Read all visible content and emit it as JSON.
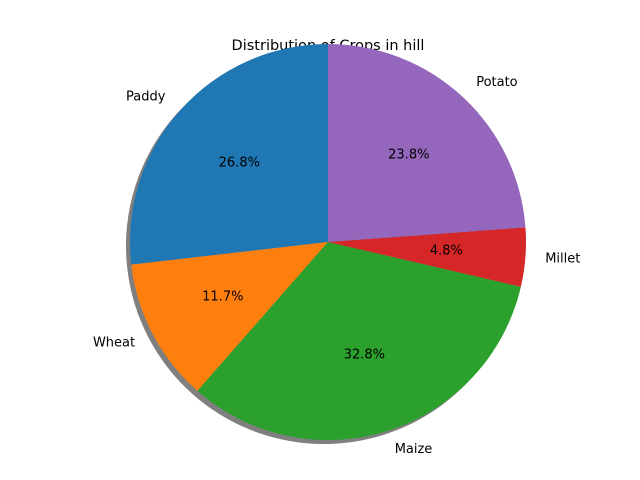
{
  "chart_data": {
    "type": "pie",
    "title": "Distribution of Crops in hill",
    "categories": [
      "Paddy",
      "Wheat",
      "Maize",
      "Millet",
      "Potato"
    ],
    "values": [
      26.8,
      11.7,
      32.8,
      4.8,
      23.8
    ],
    "value_labels": [
      "26.8%",
      "11.7%",
      "32.8%",
      "4.8%",
      "23.8%"
    ],
    "colors": [
      "#1f77b4",
      "#ff7f0e",
      "#2ca02c",
      "#d62728",
      "#9467bd"
    ],
    "start_angle_deg": 90,
    "direction": "counterclockwise",
    "shadow": true,
    "legend": "none"
  }
}
